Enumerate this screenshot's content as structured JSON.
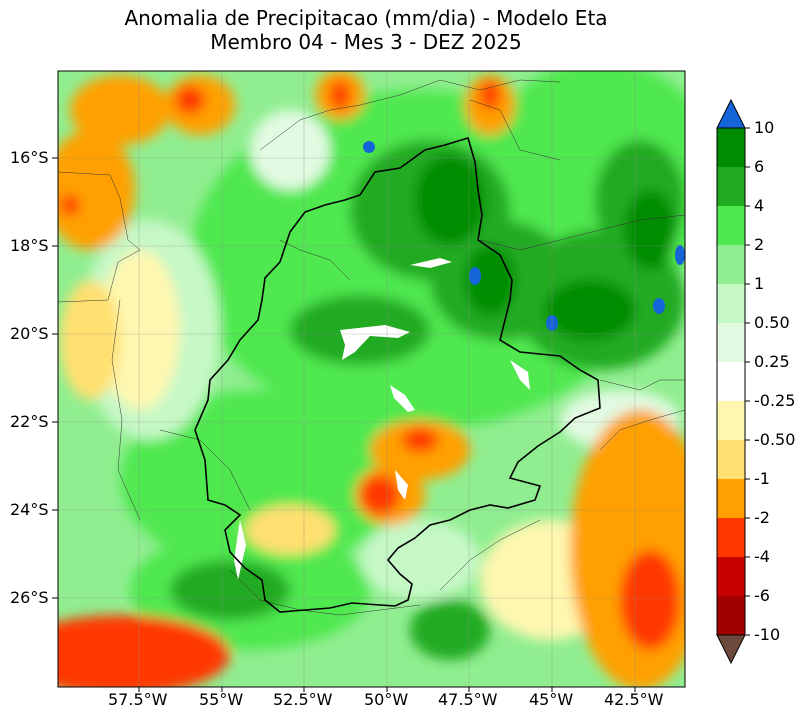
{
  "title": {
    "line1": "Anomalia de Precipitacao (mm/dia) - Modelo Eta",
    "line2": "Membro 04 - Mes 3 - DEZ 2025"
  },
  "map": {
    "lat_labels": [
      "16°S",
      "18°S",
      "20°S",
      "22°S",
      "24°S",
      "26°S"
    ],
    "lon_labels": [
      "57.5°W",
      "55°W",
      "52.5°W",
      "50°W",
      "47.5°W",
      "45°W",
      "42.5°W"
    ]
  },
  "colorbar": {
    "labels": [
      "10",
      "6",
      "4",
      "2",
      "1",
      "0.50",
      "0.25",
      "-0.25",
      "-0.50",
      "-1",
      "-2",
      "-4",
      "-6",
      "-10"
    ],
    "colors": {
      "over": "#1565d8",
      "c_6_10": "#008c00",
      "c_4_6": "#20aa20",
      "c_2_4": "#4fe84f",
      "c_1_2": "#90ee90",
      "c_05_1": "#c6f8c6",
      "c_025_05": "#e2fae2",
      "neutral": "#ffffff",
      "c_m05_m025": "#fff7b0",
      "c_m1_m05": "#ffe070",
      "c_m2_m1": "#ffa000",
      "c_m4_m2": "#ff3800",
      "c_m6_m4": "#c80000",
      "c_m10_m6": "#a00000",
      "under": "#6b4a3c"
    }
  }
}
